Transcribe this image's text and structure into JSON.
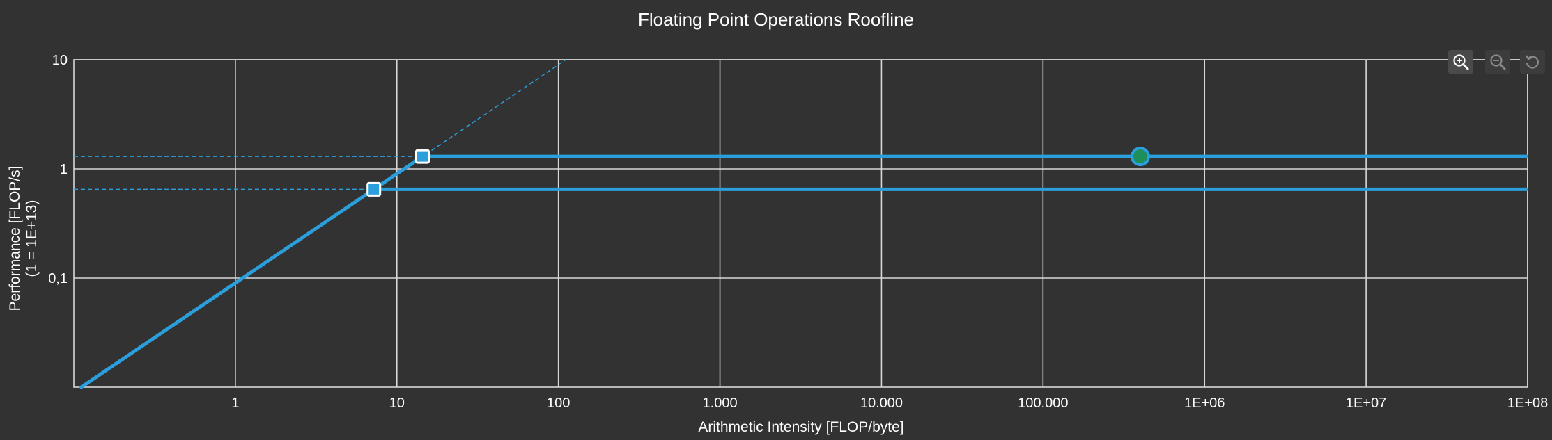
{
  "chart_data": {
    "type": "line",
    "title": "Floating Point Operations Roofline",
    "xlabel": "Arithmetic Intensity [FLOP/byte]",
    "ylabel": "Performance [FLOP/s]",
    "ylabel_sub": "(1 = 1E+13)",
    "xscale": "log",
    "yscale": "log",
    "xlim": [
      0.1,
      100000000
    ],
    "ylim": [
      0.01,
      10
    ],
    "x_ticks": [
      {
        "value": 1,
        "label": "1"
      },
      {
        "value": 10,
        "label": "10"
      },
      {
        "value": 100,
        "label": "100"
      },
      {
        "value": 1000,
        "label": "1.000"
      },
      {
        "value": 10000,
        "label": "10.000"
      },
      {
        "value": 100000,
        "label": "100.000"
      },
      {
        "value": 1000000,
        "label": "1E+06"
      },
      {
        "value": 10000000,
        "label": "1E+07"
      },
      {
        "value": 100000000,
        "label": "1E+08"
      }
    ],
    "y_ticks": [
      {
        "value": 0.1,
        "label": "0,1"
      },
      {
        "value": 1,
        "label": "1"
      },
      {
        "value": 10,
        "label": "10"
      }
    ],
    "grid": true,
    "memory_bandwidth_slope": 0.09,
    "roofs": [
      {
        "peak": 1.3,
        "ridge_x": 14.4
      },
      {
        "peak": 0.65,
        "ridge_x": 7.2
      }
    ],
    "kernel_points": [
      {
        "x": 400000,
        "y": 1.3
      }
    ],
    "colors": {
      "background": "#323232",
      "line": "#2b9fdc",
      "grid": "#d8d8d8",
      "text": "#ffffff",
      "kernel_fill": "#1e8f5a"
    }
  },
  "toolbar": {
    "zoom_in_icon": "zoom-in-icon",
    "zoom_out_icon": "zoom-out-icon",
    "reset_icon": "reset-zoom-icon"
  }
}
